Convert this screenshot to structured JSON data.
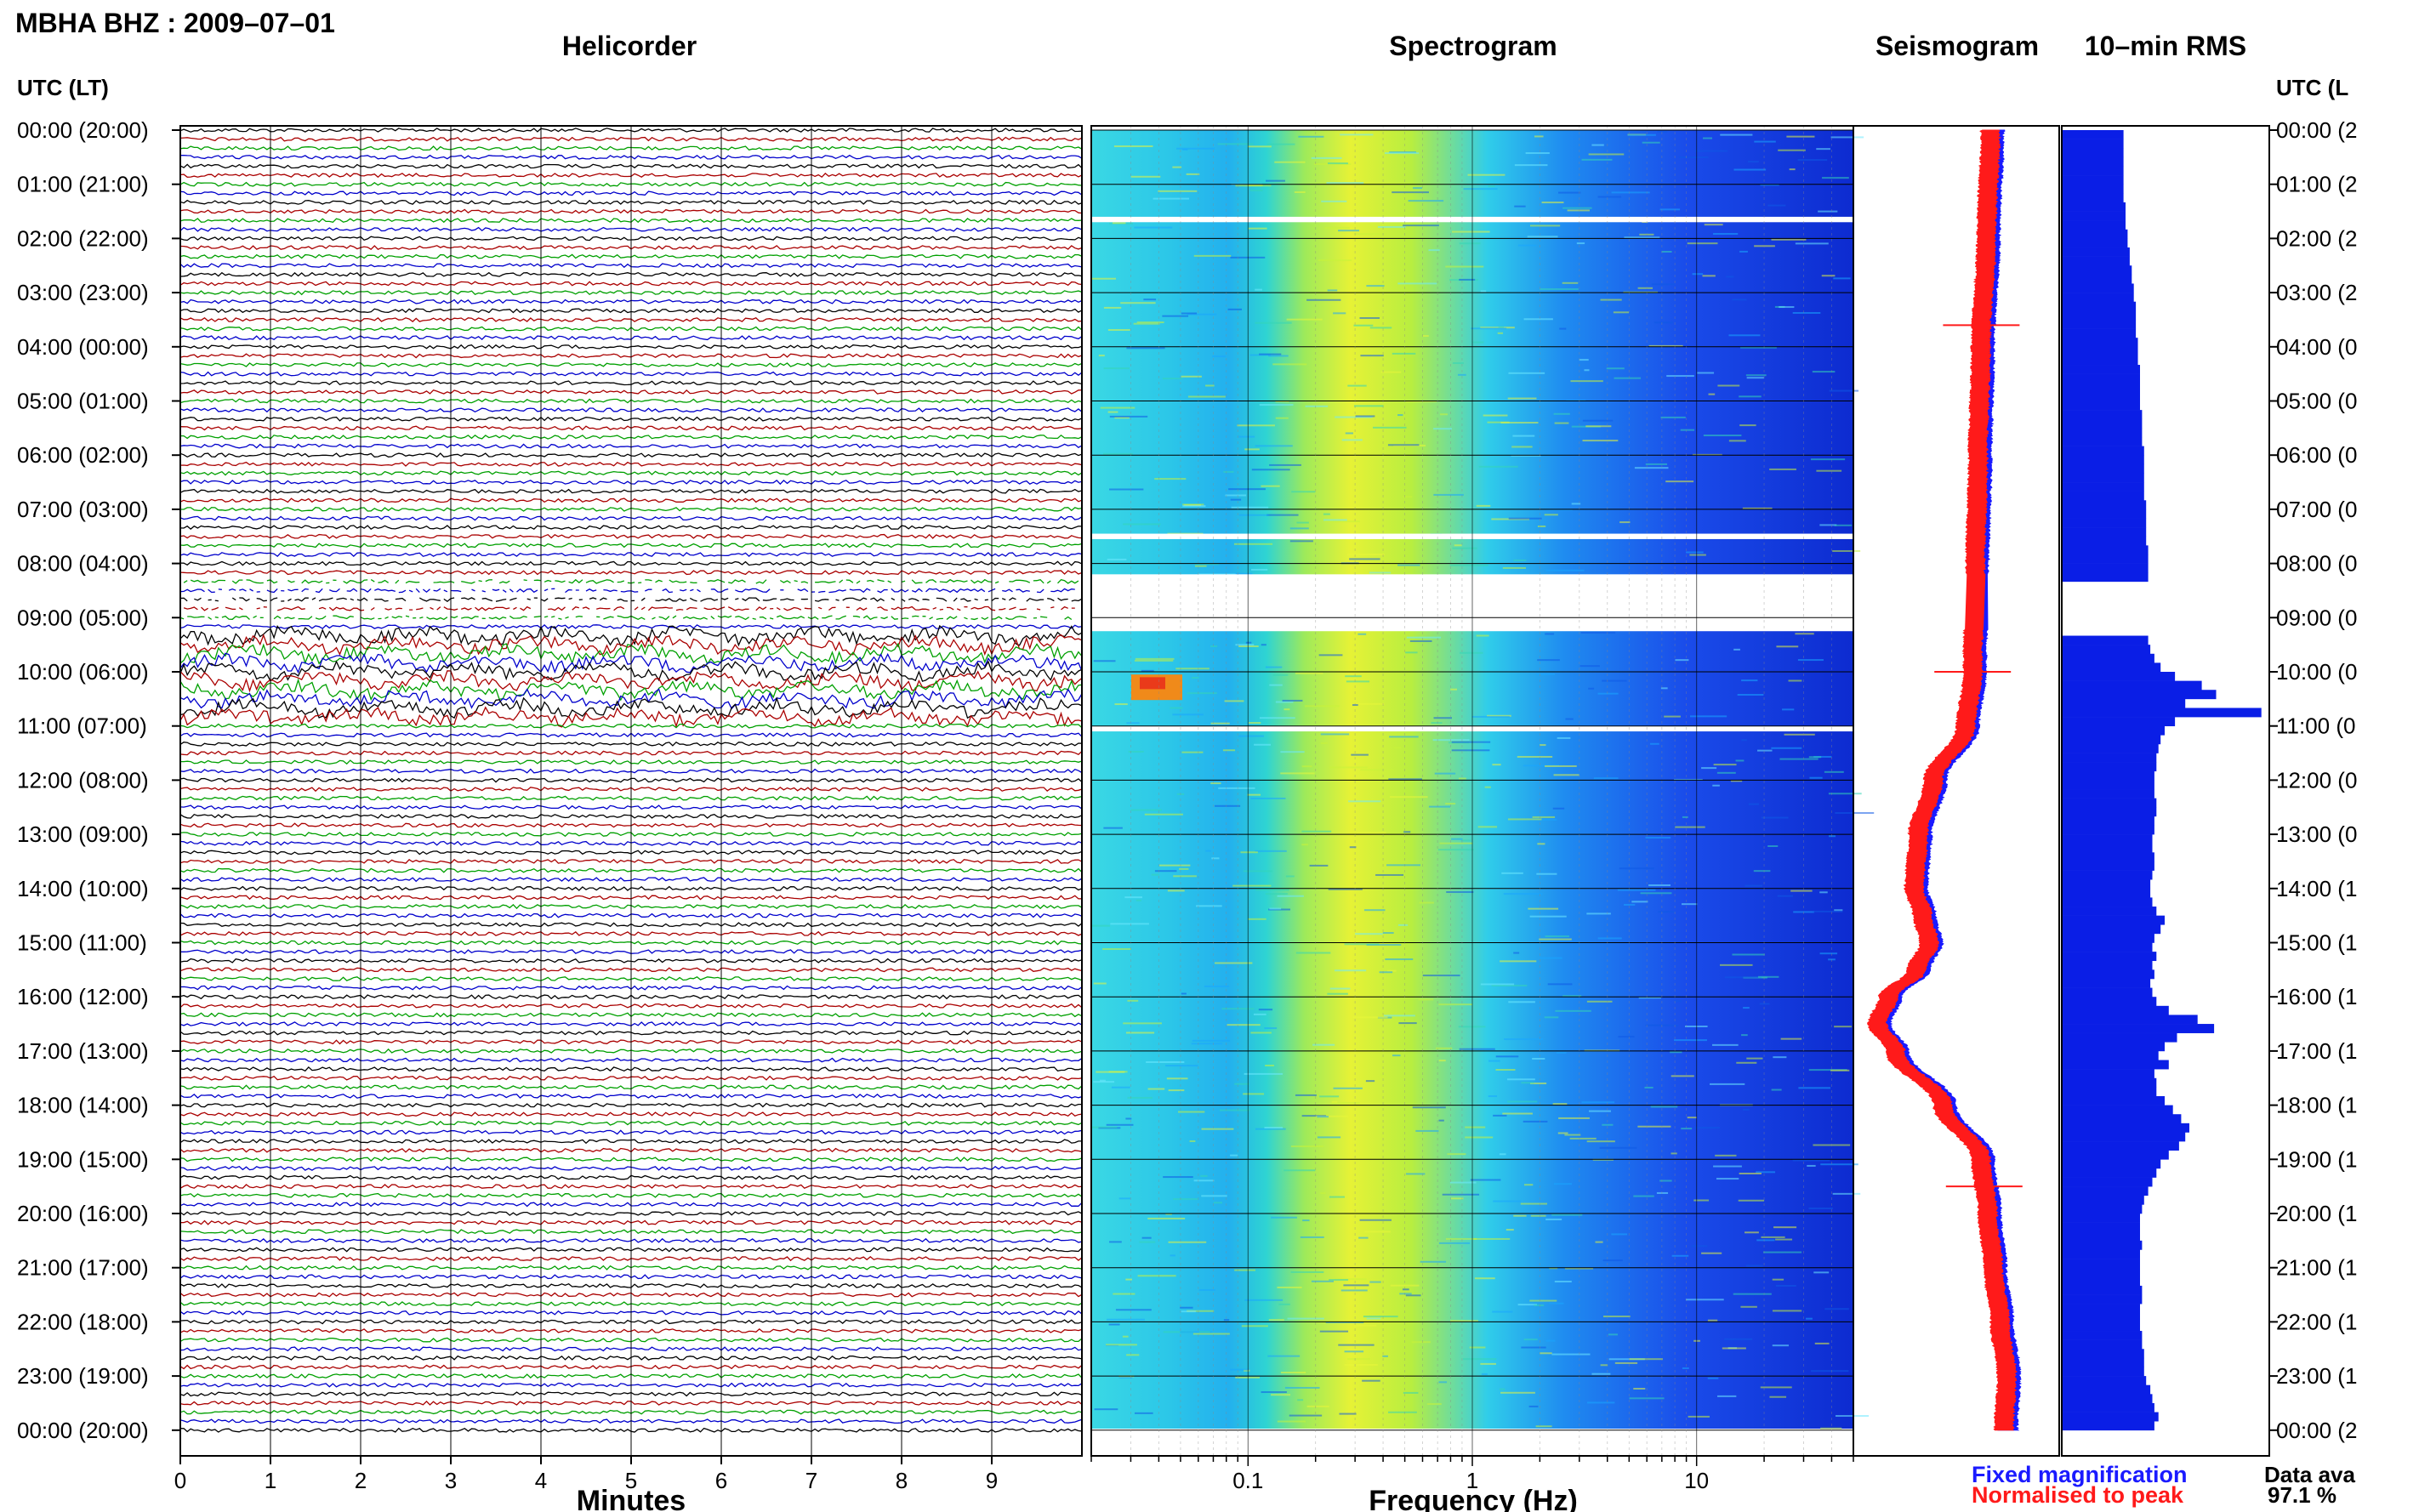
{
  "header": {
    "title": "MBHA BHZ : 2009–07–01"
  },
  "panels": {
    "helicorder": "Helicorder",
    "spectrogram": "Spectrogram",
    "seismogram": "Seismogram",
    "rms": "10–min RMS"
  },
  "axes": {
    "left_header": "UTC (LT)",
    "right_header": "UTC (L",
    "minutes_label": "Minutes",
    "frequency_label": "Frequency (Hz)"
  },
  "legend": {
    "fixed": "Fixed magnification",
    "normalised": "Normalised to peak",
    "fixed_color": "#1a1aff",
    "normalised_color": "#ff1a1a"
  },
  "availability": {
    "label": "Data ava",
    "value": "97.1 %"
  },
  "chart_data": [
    {
      "type": "line",
      "panel": "helicorder",
      "title": "Helicorder",
      "xlabel": "Minutes",
      "ylabel": "UTC (LT)",
      "x_ticks": [
        0,
        1,
        2,
        3,
        4,
        5,
        6,
        7,
        8,
        9
      ],
      "xlim": [
        0,
        10
      ],
      "y_tick_labels": [
        "00:00 (20:00)",
        "01:00 (21:00)",
        "02:00 (22:00)",
        "03:00 (23:00)",
        "04:00 (00:00)",
        "05:00 (01:00)",
        "06:00 (02:00)",
        "07:00 (03:00)",
        "08:00 (04:00)",
        "09:00 (05:00)",
        "10:00 (06:00)",
        "11:00 (07:00)",
        "12:00 (08:00)",
        "13:00 (09:00)",
        "14:00 (10:00)",
        "15:00 (11:00)",
        "16:00 (12:00)",
        "17:00 (13:00)",
        "18:00 (14:00)",
        "19:00 (15:00)",
        "20:00 (16:00)",
        "21:00 (17:00)",
        "22:00 (18:00)",
        "23:00 (19:00)",
        "00:00 (20:00)"
      ],
      "right_tick_labels": [
        "00:00 (2",
        "01:00 (2",
        "02:00 (2",
        "03:00 (2",
        "04:00 (0",
        "05:00 (0",
        "06:00 (0",
        "07:00 (0",
        "08:00 (0",
        "09:00 (0",
        "10:00 (0",
        "11:00 (0",
        "12:00 (0",
        "13:00 (0",
        "14:00 (1",
        "15:00 (1",
        "16:00 (1",
        "17:00 (1",
        "18:00 (1",
        "19:00 (1",
        "20:00 (1",
        "21:00 (1",
        "22:00 (1",
        "23:00 (1",
        "00:00 (2"
      ],
      "traces_per_hour": 6,
      "trace_colors": [
        "#000000",
        "#aa0000",
        "#00a000",
        "#0000cc"
      ],
      "gap_hours": [
        8.2,
        9.1
      ]
    },
    {
      "type": "heatmap",
      "panel": "spectrogram",
      "title": "Spectrogram",
      "xlabel": "Frequency (Hz)",
      "x_scale": "log",
      "x_tick_labels": [
        "0.1",
        "1",
        "10"
      ],
      "xlim": [
        0.02,
        50
      ],
      "gaps_utc_hours": [
        [
          1.6,
          1.7
        ],
        [
          7.45,
          7.55
        ],
        [
          8.2,
          9.25
        ],
        [
          11.0,
          11.1
        ]
      ]
    },
    {
      "type": "line",
      "panel": "seismogram",
      "title": "Seismogram",
      "series": [
        {
          "name": "Fixed magnification",
          "color": "#1a1aff"
        },
        {
          "name": "Normalised to peak",
          "color": "#ff1a1a"
        }
      ],
      "profile_hours": [
        0,
        2,
        4,
        6,
        8,
        10,
        11,
        12,
        13,
        14,
        14.5,
        15,
        15.5,
        16,
        16.5,
        17,
        18,
        19,
        20,
        21,
        22,
        23,
        24
      ],
      "profile_offsets": [
        0.0,
        -0.3,
        -0.7,
        -0.9,
        -1.1,
        -1.3,
        -1.8,
        -4.2,
        -5.3,
        -5.6,
        -5.0,
        -4.5,
        -5.4,
        -7.5,
        -8.3,
        -7.0,
        -3.5,
        -0.7,
        -0.2,
        0.2,
        0.7,
        1.2,
        1.0
      ]
    },
    {
      "type": "bar",
      "panel": "rms",
      "title": "10–min RMS",
      "orientation": "horizontal",
      "units": "relative",
      "bins_per_hour": 6,
      "values": [
        0.3,
        0.3,
        0.3,
        0.3,
        0.3,
        0.3,
        0.3,
        0.3,
        0.31,
        0.31,
        0.31,
        0.32,
        0.32,
        0.33,
        0.33,
        0.34,
        0.34,
        0.35,
        0.35,
        0.36,
        0.36,
        0.36,
        0.36,
        0.37,
        0.37,
        0.37,
        0.38,
        0.38,
        0.38,
        0.38,
        0.38,
        0.39,
        0.39,
        0.39,
        0.39,
        0.4,
        0.4,
        0.4,
        0.4,
        0.4,
        0.4,
        0.41,
        0.41,
        0.41,
        0.41,
        0.41,
        0.42,
        0.42,
        0.42,
        0.42,
        0.0,
        0.0,
        0.0,
        0.0,
        0.0,
        0.0,
        0.42,
        0.43,
        0.45,
        0.48,
        0.55,
        0.68,
        0.75,
        0.6,
        0.97,
        0.55,
        0.5,
        0.48,
        0.47,
        0.46,
        0.46,
        0.45,
        0.45,
        0.45,
        0.46,
        0.46,
        0.45,
        0.45,
        0.44,
        0.44,
        0.45,
        0.45,
        0.44,
        0.43,
        0.43,
        0.44,
        0.46,
        0.5,
        0.48,
        0.45,
        0.44,
        0.46,
        0.44,
        0.45,
        0.43,
        0.44,
        0.46,
        0.52,
        0.66,
        0.74,
        0.56,
        0.5,
        0.47,
        0.52,
        0.45,
        0.46,
        0.46,
        0.5,
        0.54,
        0.58,
        0.62,
        0.6,
        0.57,
        0.52,
        0.48,
        0.46,
        0.44,
        0.42,
        0.4,
        0.39,
        0.38,
        0.38,
        0.38,
        0.39,
        0.38,
        0.38,
        0.38,
        0.38,
        0.39,
        0.39,
        0.38,
        0.38,
        0.38,
        0.39,
        0.39,
        0.4,
        0.4,
        0.4,
        0.41,
        0.43,
        0.44,
        0.45,
        0.47,
        0.45
      ]
    }
  ]
}
